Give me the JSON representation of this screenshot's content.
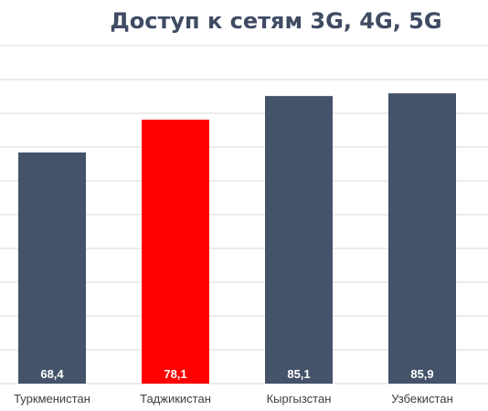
{
  "chart_data": {
    "type": "bar",
    "title": "Доступ к сетям 3G, 4G, 5G",
    "xlabel": "",
    "ylabel": "",
    "categories": [
      "Туркменистан",
      "Таджикистан",
      "Кыргызстан",
      "Узбекистан"
    ],
    "values": [
      68.4,
      78.1,
      85.1,
      85.9
    ],
    "value_labels": [
      "68,4",
      "78,1",
      "85,1",
      "85,9"
    ],
    "ylim": [
      0,
      110
    ],
    "grid": true,
    "legend": "none",
    "colors": {
      "default_bar": "#44536a",
      "highlight_bar": "#ff0000",
      "title": "#3f4b63",
      "grid": "#d9d9d9",
      "category_text": "#404040",
      "value_text": "#ffffff"
    },
    "highlight_category": "Таджикистан"
  }
}
